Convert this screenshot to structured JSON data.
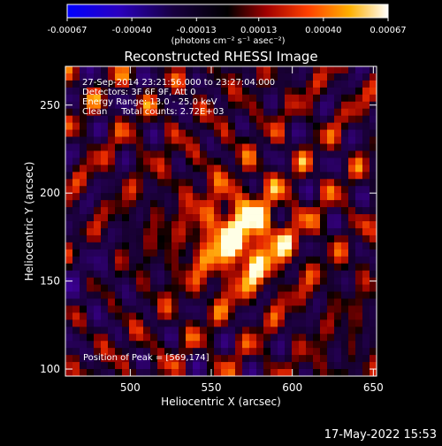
{
  "chart_data": {
    "type": "heatmap",
    "title": "Reconstructed RHESSI Image",
    "xlabel": "Heliocentric X (arcsec)",
    "ylabel": "Heliocentric Y (arcsec)",
    "xlim": [
      460,
      652
    ],
    "ylim": [
      96,
      272
    ],
    "xticks": [
      500,
      550,
      600,
      650
    ],
    "yticks": [
      100,
      150,
      200,
      250
    ],
    "colorbar": {
      "min": -0.00067,
      "max": 0.00067,
      "ticks": [
        -0.00067,
        -0.0004,
        -0.00013,
        0.00013,
        0.0004,
        0.00067
      ],
      "tick_labels": [
        "-0.00067",
        "-0.00040",
        "-0.00013",
        "0.00013",
        "0.00040",
        "0.00067"
      ],
      "unit_label": "(photons cm⁻² s⁻¹ asec⁻²)"
    },
    "annotations": [
      "27-Sep-2014 23:21:56.000 to 23:27:04.000",
      "Detectors: 3F 6F 9F, Att 0",
      "Energy Range: 13.0 - 25.0 keV",
      "Clean     Total counts: 2.72E+03"
    ],
    "peak": {
      "label": "Position of Peak = [569,174]",
      "x": 569,
      "y": 174
    },
    "grid": false
  },
  "footer": {
    "date": "17-May-2022 15:53"
  }
}
